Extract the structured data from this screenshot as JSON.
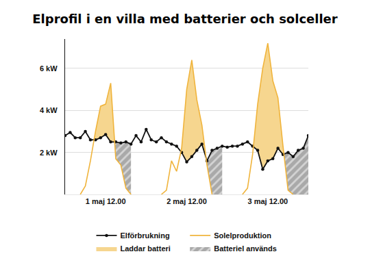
{
  "chart_data": {
    "type": "line",
    "title": "Elprofil i en villa med batterier och solceller",
    "x": [
      0,
      1.5,
      3,
      4.5,
      6,
      7.5,
      9,
      10.5,
      12,
      13.5,
      15,
      16.5,
      18,
      19.5,
      21,
      22.5,
      24,
      25.5,
      27,
      28.5,
      30,
      31.5,
      33,
      34.5,
      36,
      37.5,
      39,
      40.5,
      42,
      43.5,
      45,
      46.5,
      48,
      49.5,
      51,
      52.5,
      54,
      55.5,
      57,
      58.5,
      60,
      61.5,
      63,
      64.5,
      66,
      67.5,
      69,
      70.5,
      72
    ],
    "xlim": [
      0,
      72
    ],
    "xticks": [
      {
        "value": 12,
        "label": "1 maj 12.00"
      },
      {
        "value": 36,
        "label": "2 maj 12.00"
      },
      {
        "value": 60,
        "label": "3 maj 12.00"
      }
    ],
    "ylim": [
      0,
      7.4
    ],
    "yticks": [
      {
        "value": 2,
        "label": "2 kW"
      },
      {
        "value": 4,
        "label": "4 kW"
      },
      {
        "value": 6,
        "label": "6 kW"
      }
    ],
    "grid": true,
    "legend": "bottom",
    "series": [
      {
        "name": "Elförbrukning",
        "color": "#111111",
        "marker": "circle",
        "values": [
          2.8,
          2.95,
          2.7,
          2.7,
          3.0,
          2.6,
          2.6,
          2.7,
          2.85,
          2.5,
          2.5,
          2.45,
          2.5,
          2.4,
          2.8,
          2.5,
          3.1,
          2.6,
          2.5,
          2.7,
          2.5,
          2.4,
          2.3,
          2.0,
          1.55,
          1.8,
          2.1,
          2.4,
          1.6,
          2.1,
          2.2,
          2.3,
          2.25,
          2.3,
          2.3,
          2.4,
          2.5,
          2.3,
          2.1,
          1.2,
          1.6,
          1.7,
          2.2,
          1.9,
          2.0,
          1.8,
          2.1,
          2.2,
          2.8
        ]
      },
      {
        "name": "Solelproduktion",
        "color": "#f0b43c",
        "values": [
          null,
          null,
          null,
          0,
          0.4,
          1.6,
          3.0,
          4.2,
          4.3,
          5.3,
          1.7,
          1.4,
          0.3,
          0,
          null,
          null,
          null,
          null,
          null,
          0,
          0.2,
          1.6,
          1.1,
          2.2,
          5.0,
          6.4,
          4.5,
          3.3,
          1.4,
          0,
          null,
          null,
          null,
          null,
          null,
          0,
          0.3,
          1.9,
          4.3,
          6.0,
          7.2,
          5.4,
          4.6,
          2.3,
          0.2,
          0,
          null,
          null,
          null
        ]
      },
      {
        "name": "Laddar batteri",
        "type": "area",
        "color": "#f6d68f",
        "marker": "solid",
        "segments": [
          {
            "x": [
              8.6,
              9,
              10.5,
              12,
              13.5,
              14.7
            ],
            "values": [
              2.6,
              3.0,
              4.2,
              4.3,
              5.3,
              2.5
            ],
            "base": [
              2.6,
              2.6,
              2.7,
              2.85,
              2.5,
              2.5
            ]
          },
          {
            "x": [
              34.3,
              34.5,
              36,
              37.5,
              39,
              40.5,
              41.7
            ],
            "values": [
              2.03,
              2.2,
              5.0,
              6.4,
              4.5,
              3.3,
              1.74
            ],
            "base": [
              2.03,
              2.0,
              1.55,
              1.8,
              2.1,
              2.4,
              1.74
            ]
          },
          {
            "x": [
              55.7,
              57,
              58.5,
              60,
              61.5,
              63,
              64.5,
              64.8
            ],
            "values": [
              2.27,
              4.3,
              6.0,
              7.2,
              5.4,
              4.6,
              2.3,
              1.92
            ],
            "base": [
              2.27,
              2.1,
              1.2,
              1.6,
              1.7,
              2.2,
              1.9,
              1.92
            ]
          }
        ]
      },
      {
        "name": "Batteriel används",
        "type": "area",
        "color": "#a9a9a9",
        "marker": "hatch",
        "segments": [
          {
            "x": [
              14.7,
              15,
              16.5,
              18,
              19.5
            ],
            "values": [
              2.5,
              2.5,
              2.45,
              2.5,
              2.4
            ],
            "base": [
              2.5,
              1.7,
              1.4,
              0.3,
              0
            ]
          },
          {
            "x": [
              41.7,
              42,
              43.5,
              45,
              46.5
            ],
            "values": [
              1.74,
              1.6,
              2.1,
              2.2,
              2.3
            ],
            "base": [
              1.74,
              1.4,
              0,
              0,
              0
            ]
          },
          {
            "x": [
              64.8,
              66,
              67.5,
              69,
              70.5,
              72
            ],
            "values": [
              1.92,
              2.0,
              1.8,
              2.1,
              2.2,
              2.8
            ],
            "base": [
              1.92,
              0.2,
              0,
              0,
              0,
              0
            ]
          }
        ]
      }
    ]
  }
}
